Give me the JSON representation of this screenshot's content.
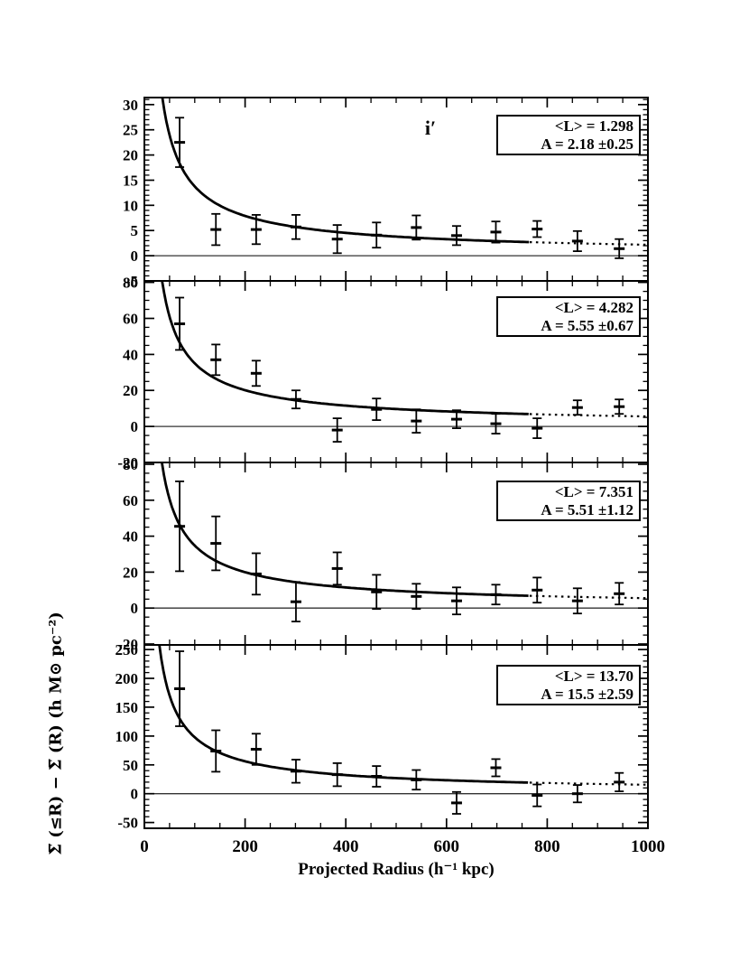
{
  "colors": {
    "ink": "#000000",
    "background": "#ffffff"
  },
  "chart_data": {
    "type": "scatter",
    "title": "",
    "band_label": "i′",
    "xlabel": "Projected Radius (h⁻¹ kpc)",
    "ylabel": "Σ̅ (≤R) − Σ̅ (R) (h M⊙ pc⁻²)",
    "xlim": [
      0,
      1000
    ],
    "xticks": [
      0,
      200,
      400,
      600,
      800,
      1000
    ],
    "x_minor_step": 50,
    "fit_exponent": -0.8,
    "fit_model": "y = A · (R / 1000 kpc)^(-0.8)",
    "legend_position": "top-right",
    "grid": false,
    "x": [
      70,
      142,
      222,
      301,
      383,
      461,
      540,
      620,
      698,
      780,
      860,
      943
    ],
    "panels": [
      {
        "mean_luminosity": 1.298,
        "amplitude": 2.18,
        "amplitude_err": 0.25,
        "legend_mean_label": "<L> = 1.298",
        "legend_amp_label": "A = 2.18 ±0.25",
        "ylim": [
          -5,
          31.4
        ],
        "yticks": [
          -5,
          0,
          5,
          10,
          15,
          20,
          25,
          30
        ],
        "y_minor_step": 1,
        "y": [
          22.5,
          5.2,
          5.2,
          5.7,
          3.3,
          4.1,
          5.6,
          4.0,
          4.7,
          5.3,
          2.9,
          1.4
        ],
        "yerr": [
          4.9,
          3.1,
          2.9,
          2.4,
          2.8,
          2.5,
          2.4,
          1.9,
          2.1,
          1.6,
          2.0,
          1.9
        ]
      },
      {
        "mean_luminosity": 4.282,
        "amplitude": 5.55,
        "amplitude_err": 0.67,
        "legend_mean_label": "<L> = 4.282",
        "legend_amp_label": "A = 5.55 ±0.67",
        "ylim": [
          -20,
          80.8
        ],
        "yticks": [
          -20,
          0,
          20,
          40,
          60,
          80
        ],
        "y_minor_step": 5,
        "y": [
          57,
          37,
          29.5,
          15,
          -2,
          9.5,
          3,
          4,
          1.5,
          -1,
          10.5,
          11
        ],
        "yerr": [
          14.5,
          8.5,
          7,
          5,
          6.5,
          6,
          6.5,
          5,
          5.5,
          5.5,
          4,
          4
        ]
      },
      {
        "mean_luminosity": 7.351,
        "amplitude": 5.51,
        "amplitude_err": 1.12,
        "legend_mean_label": "<L> = 7.351",
        "legend_amp_label": "A = 5.51 ±1.12",
        "ylim": [
          -20.5,
          81
        ],
        "yticks": [
          -20,
          0,
          20,
          40,
          60,
          80
        ],
        "y_minor_step": 5,
        "y": [
          45.5,
          36,
          19,
          3.5,
          22,
          9,
          6.5,
          4,
          7.5,
          10,
          4,
          8
        ],
        "yerr": [
          25,
          15,
          11.5,
          11,
          9,
          9.5,
          7,
          7.5,
          5.5,
          7,
          7,
          6
        ]
      },
      {
        "mean_luminosity": 13.7,
        "amplitude": 15.5,
        "amplitude_err": 2.59,
        "legend_mean_label": "<L> = 13.70",
        "legend_amp_label": "A = 15.5 ±2.59",
        "ylim": [
          -60,
          258
        ],
        "yticks": [
          -50,
          0,
          50,
          100,
          150,
          200,
          250
        ],
        "y_minor_step": 10,
        "y": [
          182,
          74,
          77,
          39,
          33,
          30,
          24,
          -16,
          45,
          -3,
          0,
          20
        ],
        "yerr": [
          65,
          36,
          27,
          20,
          20,
          18,
          17,
          19,
          15,
          19,
          15,
          16
        ]
      }
    ]
  }
}
